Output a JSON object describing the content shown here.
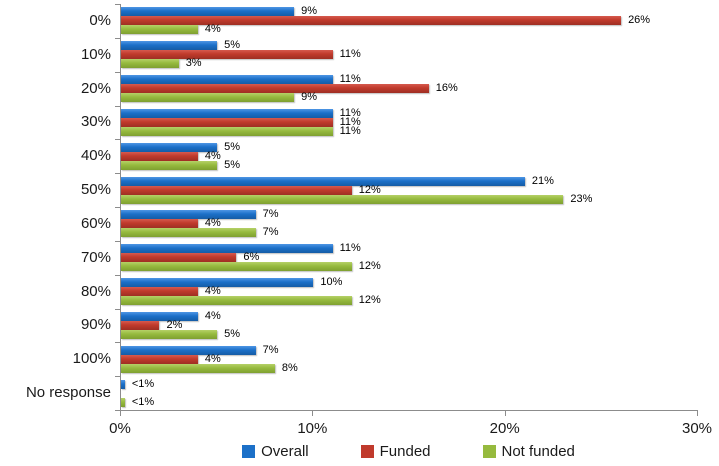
{
  "chart_data": {
    "type": "bar",
    "orientation": "horizontal",
    "title": "",
    "xlabel": "",
    "ylabel": "",
    "grid": false,
    "categories": [
      "0%",
      "10%",
      "20%",
      "30%",
      "40%",
      "50%",
      "60%",
      "70%",
      "80%",
      "90%",
      "100%",
      "No response"
    ],
    "series": [
      {
        "name": "Overall",
        "color": "#1C70C8",
        "color_light": "#4E96E4",
        "color_dark": "#155CA5",
        "values": [
          9,
          5,
          11,
          11,
          5,
          21,
          7,
          11,
          10,
          4,
          7,
          0.2
        ],
        "labels": [
          "9%",
          "5%",
          "11%",
          "11%",
          "5%",
          "21%",
          "7%",
          "11%",
          "10%",
          "4%",
          "7%",
          "<1%"
        ]
      },
      {
        "name": "Funded",
        "color": "#C03A2C",
        "color_light": "#D65A4E",
        "color_dark": "#9E2F23",
        "values": [
          26,
          11,
          16,
          11,
          4,
          12,
          4,
          6,
          4,
          2,
          4,
          0
        ],
        "labels": [
          "26%",
          "11%",
          "16%",
          "11%",
          "4%",
          "12%",
          "4%",
          "6%",
          "4%",
          "2%",
          "4%",
          ""
        ]
      },
      {
        "name": "Not funded",
        "color": "#96BA3E",
        "color_light": "#B5D168",
        "color_dark": "#7FA030",
        "values": [
          4,
          3,
          9,
          11,
          5,
          23,
          7,
          12,
          12,
          5,
          8,
          0.2
        ],
        "labels": [
          "4%",
          "3%",
          "9%",
          "11%",
          "5%",
          "23%",
          "7%",
          "12%",
          "12%",
          "5%",
          "8%",
          "<1%"
        ]
      }
    ],
    "x_axis": {
      "min": 0,
      "max": 30,
      "ticks": [
        {
          "value": 0,
          "label": "0%"
        },
        {
          "value": 10,
          "label": "10%"
        },
        {
          "value": 20,
          "label": "20%"
        },
        {
          "value": 30,
          "label": "30%"
        }
      ]
    },
    "legend": {
      "position": "bottom",
      "items": [
        "Overall",
        "Funded",
        "Not funded"
      ]
    }
  }
}
